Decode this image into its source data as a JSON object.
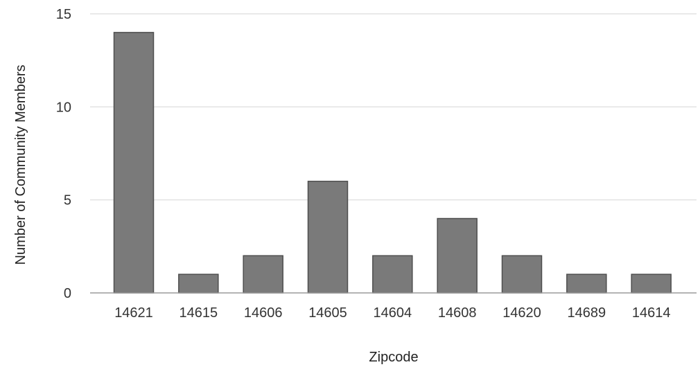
{
  "chart_data": {
    "type": "bar",
    "title": "",
    "xlabel": "Zipcode",
    "ylabel": "Number of Community Members",
    "categories": [
      "14621",
      "14615",
      "14606",
      "14605",
      "14604",
      "14608",
      "14620",
      "14689",
      "14614"
    ],
    "values": [
      14,
      1,
      2,
      6,
      2,
      4,
      2,
      1,
      1
    ],
    "ylim": [
      0,
      15
    ],
    "yticks": [
      0,
      5,
      10,
      15
    ],
    "grid": true,
    "legend": "none",
    "colors": {
      "bar_fill": "#7a7a7a",
      "bar_stroke": "#4e4e4e",
      "grid": "#e2e2e2",
      "axis": "#9a9a9a"
    }
  }
}
